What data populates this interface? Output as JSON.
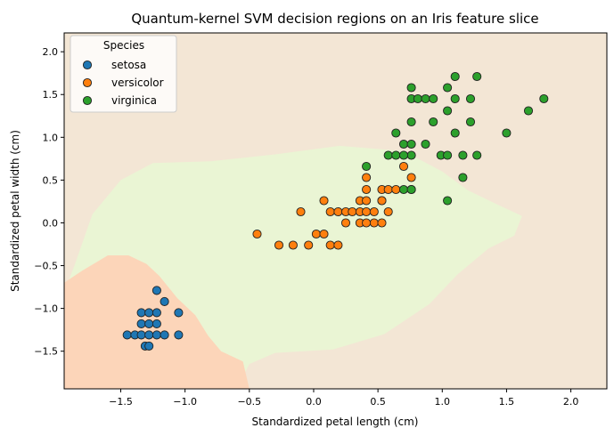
{
  "chart_data": {
    "type": "scatter",
    "title": "Quantum-kernel SVM decision regions on an Iris feature slice",
    "xlabel": "Standardized petal length (cm)",
    "ylabel": "Standardized petal width (cm)",
    "xlim": [
      -1.94,
      2.28
    ],
    "ylim": [
      -1.94,
      2.22
    ],
    "xticks": [
      -1.5,
      -1.0,
      -0.5,
      0.0,
      0.5,
      1.0,
      1.5,
      2.0
    ],
    "xtick_labels": [
      "−1.5",
      "−1.0",
      "−0.5",
      "0.0",
      "0.5",
      "1.0",
      "1.5",
      "2.0"
    ],
    "yticks": [
      -1.5,
      -1.0,
      -0.5,
      0.0,
      0.5,
      1.0,
      1.5,
      2.0
    ],
    "ytick_labels": [
      "−1.5",
      "−1.0",
      "−0.5",
      "0.0",
      "0.5",
      "1.0",
      "1.5",
      "2.0"
    ],
    "grid": false,
    "legend": {
      "title": "Species",
      "position": "top-left"
    },
    "regions": [
      {
        "class": "virginica",
        "color": "#f3e6d5",
        "polygon": [
          [
            -1.94,
            -1.94
          ],
          [
            2.28,
            -1.94
          ],
          [
            2.28,
            2.22
          ],
          [
            -1.94,
            2.22
          ]
        ]
      },
      {
        "class": "versicolor",
        "color": "#eaf5d4",
        "polygon": [
          [
            -1.94,
            -0.81
          ],
          [
            -1.86,
            -0.5
          ],
          [
            -1.72,
            0.1
          ],
          [
            -1.5,
            0.5
          ],
          [
            -1.25,
            0.7
          ],
          [
            -0.8,
            0.72
          ],
          [
            -0.3,
            0.8
          ],
          [
            0.2,
            0.9
          ],
          [
            0.7,
            0.84
          ],
          [
            1.0,
            0.6
          ],
          [
            1.2,
            0.38
          ],
          [
            1.42,
            0.22
          ],
          [
            1.62,
            0.08
          ],
          [
            1.56,
            -0.15
          ],
          [
            1.36,
            -0.3
          ],
          [
            1.12,
            -0.6
          ],
          [
            0.9,
            -0.95
          ],
          [
            0.55,
            -1.3
          ],
          [
            0.15,
            -1.48
          ],
          [
            -0.3,
            -1.52
          ],
          [
            -0.5,
            -1.65
          ],
          [
            -0.6,
            -1.94
          ],
          [
            -0.5,
            -1.94
          ],
          [
            -0.72,
            -1.5
          ],
          [
            -0.9,
            -1.2
          ],
          [
            -1.05,
            -0.9
          ],
          [
            -1.25,
            -0.55
          ],
          [
            -1.44,
            -0.38
          ],
          [
            -1.6,
            -0.38
          ],
          [
            -1.94,
            -0.7
          ]
        ]
      },
      {
        "class": "setosa",
        "color": "#fcd5b9",
        "polygon": [
          [
            -1.94,
            -1.94
          ],
          [
            -0.5,
            -1.94
          ],
          [
            -0.55,
            -1.62
          ],
          [
            -0.72,
            -1.5
          ],
          [
            -0.82,
            -1.32
          ],
          [
            -0.92,
            -1.08
          ],
          [
            -1.06,
            -0.88
          ],
          [
            -1.2,
            -0.62
          ],
          [
            -1.3,
            -0.48
          ],
          [
            -1.44,
            -0.38
          ],
          [
            -1.6,
            -0.38
          ],
          [
            -1.8,
            -0.56
          ],
          [
            -1.94,
            -0.7
          ]
        ]
      }
    ],
    "series": [
      {
        "name": "setosa",
        "color": "#1f77b4",
        "points": [
          [
            -1.45,
            -1.31
          ],
          [
            -1.39,
            -1.31
          ],
          [
            -1.34,
            -1.31
          ],
          [
            -1.28,
            -1.31
          ],
          [
            -1.22,
            -1.31
          ],
          [
            -1.16,
            -1.31
          ],
          [
            -1.05,
            -1.31
          ],
          [
            -1.34,
            -1.18
          ],
          [
            -1.28,
            -1.18
          ],
          [
            -1.22,
            -1.18
          ],
          [
            -1.34,
            -1.05
          ],
          [
            -1.28,
            -1.05
          ],
          [
            -1.22,
            -1.05
          ],
          [
            -1.05,
            -1.05
          ],
          [
            -1.16,
            -0.92
          ],
          [
            -1.22,
            -0.79
          ],
          [
            -1.31,
            -1.44
          ],
          [
            -1.28,
            -1.44
          ]
        ]
      },
      {
        "name": "versicolor",
        "color": "#ff7f0e",
        "points": [
          [
            -0.44,
            -0.13
          ],
          [
            -0.27,
            -0.26
          ],
          [
            -0.16,
            -0.26
          ],
          [
            -0.1,
            0.13
          ],
          [
            -0.04,
            -0.26
          ],
          [
            0.02,
            -0.13
          ],
          [
            0.08,
            -0.13
          ],
          [
            0.08,
            0.26
          ],
          [
            0.13,
            0.13
          ],
          [
            0.13,
            -0.26
          ],
          [
            0.19,
            -0.26
          ],
          [
            0.19,
            0.13
          ],
          [
            0.25,
            0.13
          ],
          [
            0.25,
            0.0
          ],
          [
            0.3,
            0.13
          ],
          [
            0.36,
            0.13
          ],
          [
            0.36,
            0.26
          ],
          [
            0.36,
            0.0
          ],
          [
            0.41,
            0.26
          ],
          [
            0.41,
            0.39
          ],
          [
            0.41,
            0.53
          ],
          [
            0.41,
            0.13
          ],
          [
            0.47,
            0.13
          ],
          [
            0.47,
            0.0
          ],
          [
            0.53,
            0.39
          ],
          [
            0.53,
            0.26
          ],
          [
            0.53,
            0.26
          ],
          [
            0.58,
            0.39
          ],
          [
            0.58,
            0.13
          ],
          [
            0.64,
            0.39
          ],
          [
            0.7,
            0.66
          ],
          [
            0.76,
            0.39
          ],
          [
            0.76,
            0.53
          ],
          [
            0.53,
            0.0
          ],
          [
            0.41,
            0.0
          ]
        ]
      },
      {
        "name": "virginica",
        "color": "#2ca02c",
        "points": [
          [
            0.41,
            0.66
          ],
          [
            0.58,
            0.79
          ],
          [
            0.64,
            0.79
          ],
          [
            0.64,
            1.05
          ],
          [
            0.7,
            0.92
          ],
          [
            0.7,
            0.39
          ],
          [
            0.76,
            0.92
          ],
          [
            0.76,
            0.79
          ],
          [
            0.76,
            1.18
          ],
          [
            0.76,
            1.45
          ],
          [
            0.76,
            1.58
          ],
          [
            0.81,
            1.45
          ],
          [
            0.87,
            1.45
          ],
          [
            0.87,
            0.92
          ],
          [
            0.93,
            1.45
          ],
          [
            0.93,
            1.18
          ],
          [
            0.99,
            0.79
          ],
          [
            1.04,
            0.79
          ],
          [
            1.04,
            0.26
          ],
          [
            1.04,
            1.31
          ],
          [
            1.04,
            1.58
          ],
          [
            1.1,
            1.71
          ],
          [
            1.1,
            1.45
          ],
          [
            1.1,
            1.05
          ],
          [
            1.16,
            0.79
          ],
          [
            1.16,
            0.53
          ],
          [
            1.22,
            1.45
          ],
          [
            1.22,
            1.18
          ],
          [
            1.27,
            0.79
          ],
          [
            1.27,
            1.71
          ],
          [
            1.5,
            1.05
          ],
          [
            1.67,
            1.31
          ],
          [
            1.79,
            1.45
          ],
          [
            0.7,
            0.79
          ],
          [
            0.76,
            0.39
          ]
        ]
      }
    ]
  }
}
